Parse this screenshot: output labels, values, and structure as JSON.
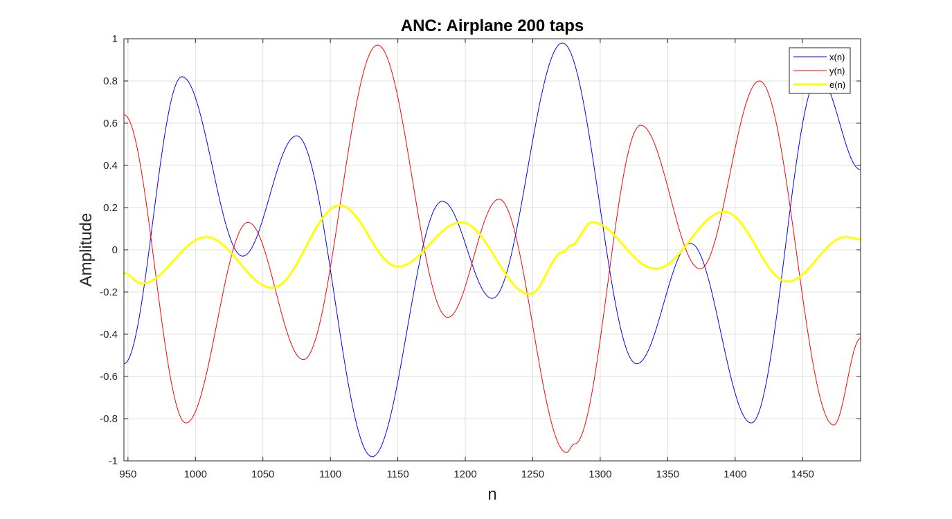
{
  "chart_data": {
    "type": "line",
    "title": "ANC: Airplane 200 taps",
    "xlabel": "n",
    "ylabel": "Amplitude",
    "xlim": [
      947,
      1493
    ],
    "ylim": [
      -1,
      1
    ],
    "xticks": [
      950,
      1000,
      1050,
      1100,
      1150,
      1200,
      1250,
      1300,
      1350,
      1400,
      1450
    ],
    "xtick_labels": [
      "950",
      "1000",
      "1050",
      "1100",
      "1150",
      "1200",
      "1250",
      "1300",
      "1350",
      "1400",
      "1450"
    ],
    "yticks": [
      -1,
      -0.8,
      -0.6,
      -0.4,
      -0.2,
      0,
      0.2,
      0.4,
      0.6,
      0.8,
      1
    ],
    "ytick_labels": [
      "-1",
      "-0.8",
      "-0.6",
      "-0.4",
      "-0.2",
      "0",
      "0.2",
      "0.4",
      "0.6",
      "0.8",
      "1"
    ],
    "grid": true,
    "legend_position": "top-right",
    "series": [
      {
        "name": "x(n)",
        "color": "#0000ff",
        "line_width": 1,
        "points": [
          [
            947,
            -0.54
          ],
          [
            990,
            0.82
          ],
          [
            1035,
            -0.03
          ],
          [
            1075,
            0.54
          ],
          [
            1131,
            -0.98
          ],
          [
            1183,
            0.23
          ],
          [
            1220,
            -0.23
          ],
          [
            1272,
            0.98
          ],
          [
            1327,
            -0.54
          ],
          [
            1367,
            0.03
          ],
          [
            1412,
            -0.82
          ],
          [
            1462,
            0.82
          ],
          [
            1493,
            0.38
          ]
        ]
      },
      {
        "name": "y(n)",
        "color": "#ff0000",
        "line_width": 1,
        "points": [
          [
            947,
            0.64
          ],
          [
            993,
            -0.82
          ],
          [
            1039,
            0.13
          ],
          [
            1080,
            -0.52
          ],
          [
            1135,
            0.97
          ],
          [
            1187,
            -0.32
          ],
          [
            1225,
            0.24
          ],
          [
            1275,
            -0.96
          ],
          [
            1281,
            -0.92
          ],
          [
            1330,
            0.59
          ],
          [
            1374,
            -0.09
          ],
          [
            1418,
            0.8
          ],
          [
            1473,
            -0.83
          ],
          [
            1493,
            -0.42
          ]
        ]
      },
      {
        "name": "e(n)",
        "color": "#ffff00",
        "line_width": 3,
        "points": [
          [
            947,
            -0.11
          ],
          [
            960,
            -0.16
          ],
          [
            1008,
            0.06
          ],
          [
            1057,
            -0.18
          ],
          [
            1107,
            0.21
          ],
          [
            1150,
            -0.08
          ],
          [
            1197,
            0.13
          ],
          [
            1248,
            -0.21
          ],
          [
            1273,
            -0.01
          ],
          [
            1278,
            0.02
          ],
          [
            1294,
            0.13
          ],
          [
            1341,
            -0.09
          ],
          [
            1392,
            0.18
          ],
          [
            1439,
            -0.15
          ],
          [
            1482,
            0.06
          ],
          [
            1493,
            0.05
          ]
        ]
      }
    ]
  }
}
